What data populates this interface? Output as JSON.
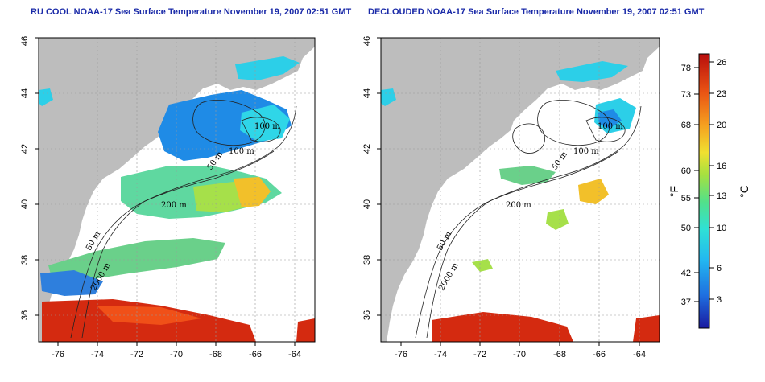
{
  "titles": {
    "left": "RU COOL NOAA-17 Sea Surface Temperature November 19, 2007 02:51 GMT",
    "right": "DECLOUDED NOAA-17 Sea Surface Temperature November 19, 2007 02:51 GMT"
  },
  "axes": {
    "x_ticks": [
      "-76",
      "-74",
      "-72",
      "-70",
      "-68",
      "-66",
      "-64"
    ],
    "y_ticks": [
      "36",
      "38",
      "40",
      "42",
      "44",
      "46"
    ]
  },
  "contour_labels": [
    "100 m",
    "100 m",
    "50 m",
    "200 m",
    "50 m",
    "2000 m"
  ],
  "colorbar": {
    "fahrenheit_label": "°F",
    "celsius_label": "°C",
    "fahrenheit_ticks": [
      "78",
      "73",
      "68",
      "60",
      "55",
      "50",
      "42",
      "37"
    ],
    "celsius_ticks": [
      "26",
      "23",
      "20",
      "16",
      "13",
      "10",
      "6",
      "3"
    ]
  },
  "colors": {
    "land": "#bdbdbd",
    "title": "#1a2aa8",
    "warm": "#d42a10",
    "cool": "#1f8be6",
    "cyan": "#2fd6e8",
    "green": "#7fdc60",
    "yellow": "#f2d22a"
  }
}
